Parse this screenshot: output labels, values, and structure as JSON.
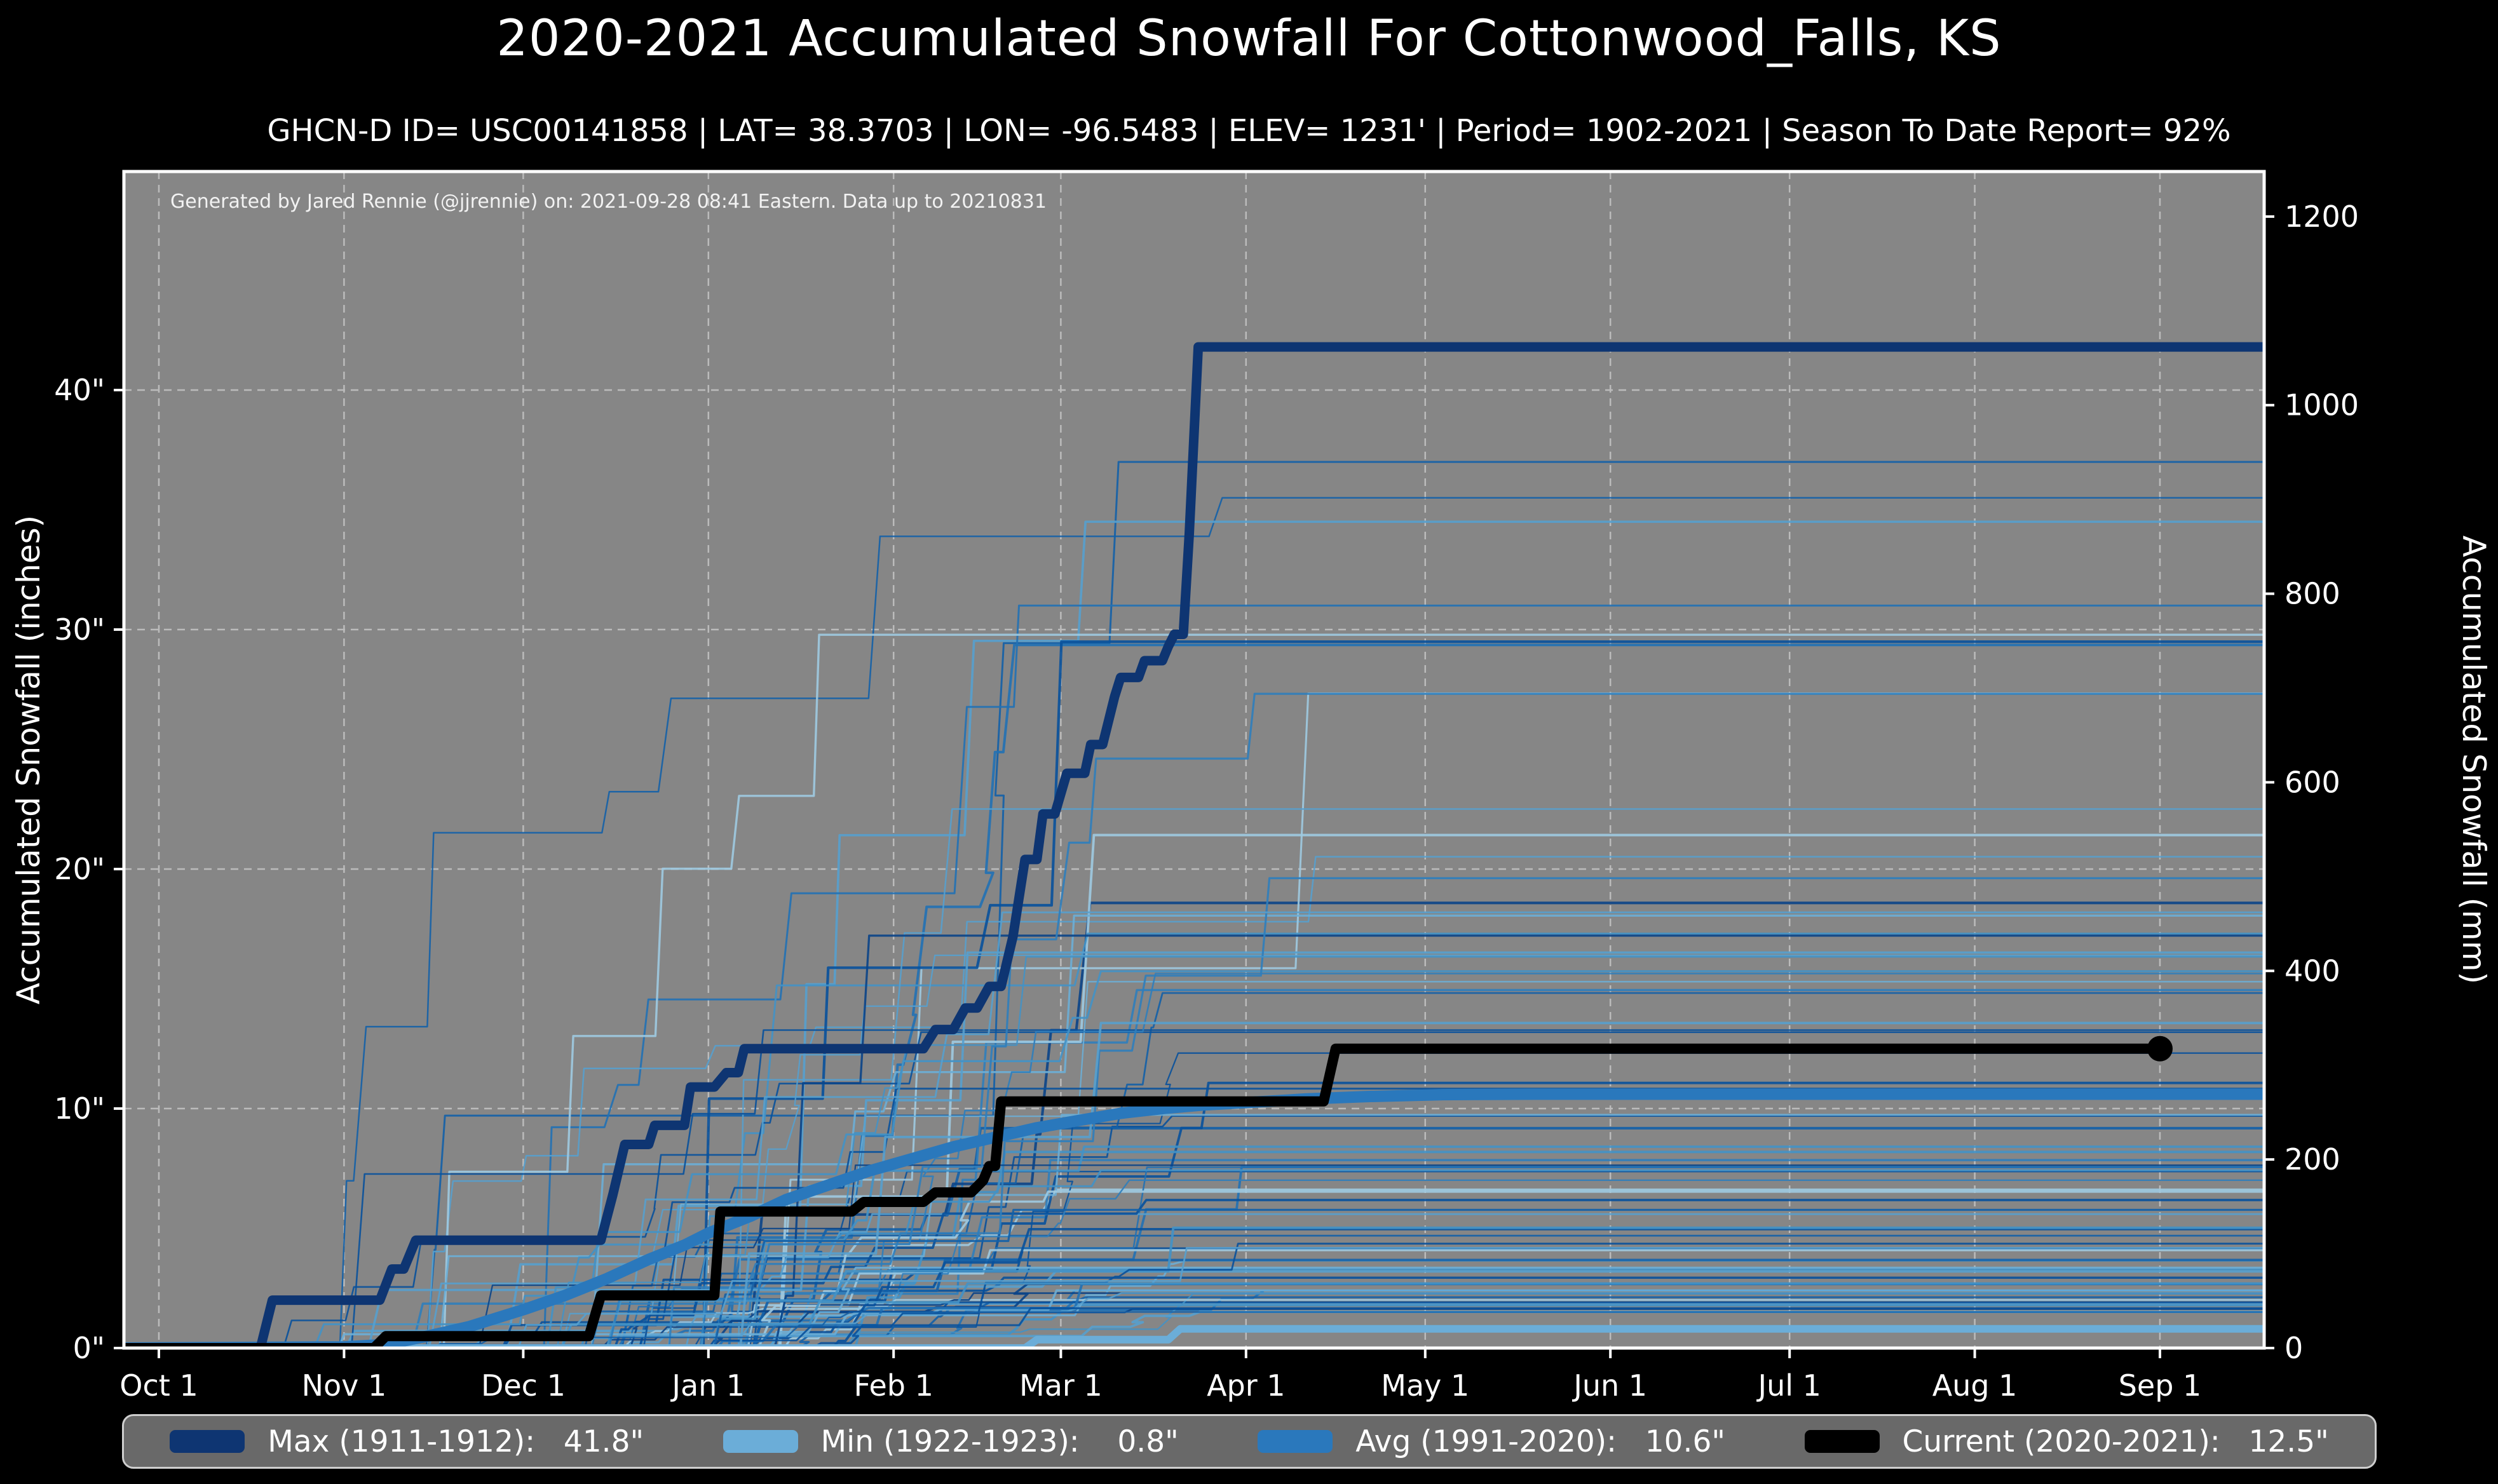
{
  "title": "2020-2021 Accumulated Snowfall For Cottonwood_Falls, KS",
  "subtitle": "GHCN-D ID= USC00141858 | LAT= 38.3703 | LON= -96.5483 | ELEV= 1231' | Period= 1902-2021 | Season To Date Report= 92%",
  "annotation": "Generated by Jared Rennie (@jjrennie) on: 2021-09-28 08:41 Eastern. Data up to 20210831",
  "colors": {
    "page_bg": "#000000",
    "plot_bg": "#868686",
    "grid": "#e8e8e8",
    "spine": "#ffffff",
    "max_line": "#0e3572",
    "min_line": "#6badd8",
    "avg_line": "#2a78bc",
    "current_line": "#000000",
    "legend_bg": "#696969",
    "legend_border": "#cfcfcf"
  },
  "axes": {
    "x": {
      "ticks": [
        {
          "label": "Oct 1",
          "day": 0
        },
        {
          "label": "Nov 1",
          "day": 31
        },
        {
          "label": "Dec 1",
          "day": 61
        },
        {
          "label": "Jan 1",
          "day": 92
        },
        {
          "label": "Feb 1",
          "day": 123
        },
        {
          "label": "Mar 1",
          "day": 151
        },
        {
          "label": "Apr 1",
          "day": 182
        },
        {
          "label": "May 1",
          "day": 212
        },
        {
          "label": "Jun 1",
          "day": 243
        },
        {
          "label": "Jul 1",
          "day": 273
        },
        {
          "label": "Aug 1",
          "day": 304
        },
        {
          "label": "Sep 1",
          "day": 335
        }
      ]
    },
    "y_left": {
      "title": "Accumulated Snowfall (inches)",
      "ticks": [
        {
          "label": "0\"",
          "inches": 0
        },
        {
          "label": "10\"",
          "inches": 10
        },
        {
          "label": "20\"",
          "inches": 20
        },
        {
          "label": "30\"",
          "inches": 30
        },
        {
          "label": "40\"",
          "inches": 40
        }
      ]
    },
    "y_right": {
      "title": "Accumulated Snowfall (mm)",
      "ticks": [
        {
          "label": "0",
          "mm": 0
        },
        {
          "label": "200",
          "mm": 200
        },
        {
          "label": "400",
          "mm": 400
        },
        {
          "label": "600",
          "mm": 600
        },
        {
          "label": "800",
          "mm": 800
        },
        {
          "label": "1000",
          "mm": 1000
        },
        {
          "label": "1200",
          "mm": 1200
        }
      ]
    }
  },
  "legend": {
    "entries": [
      {
        "label": "Max (1911-1912):   41.8\"",
        "color": "#0e3572"
      },
      {
        "label": "Min (1922-1923):    0.8\"",
        "color": "#6badd8"
      },
      {
        "label": "Avg (1991-2020):   10.6\"",
        "color": "#2a78bc"
      },
      {
        "label": "Current (2020-2021):   12.5\"",
        "color": "#000000"
      }
    ]
  },
  "chart_data": {
    "type": "line",
    "title": "2020-2021 Accumulated Snowfall For Cottonwood_Falls, KS",
    "x_unit": "days since Oct 1",
    "xlim_days": [
      -6,
      353
    ],
    "ylim_inches": [
      0,
      49.1
    ],
    "grid": true,
    "legend_position": "bottom",
    "series": [
      {
        "name": "Max (1911-1912)",
        "total_inches": 41.8,
        "color": "#0e3572",
        "width": 15,
        "points": [
          [
            -6,
            0
          ],
          [
            17,
            0
          ],
          [
            19,
            2.0
          ],
          [
            37,
            2.0
          ],
          [
            39,
            3.3
          ],
          [
            41,
            3.3
          ],
          [
            43,
            4.5
          ],
          [
            74,
            4.5
          ],
          [
            76,
            6.4
          ],
          [
            78,
            8.5
          ],
          [
            82,
            8.5
          ],
          [
            83,
            9.3
          ],
          [
            88,
            9.3
          ],
          [
            89,
            10.9
          ],
          [
            93,
            10.9
          ],
          [
            95,
            11.5
          ],
          [
            97,
            11.5
          ],
          [
            98,
            12.5
          ],
          [
            128,
            12.5
          ],
          [
            130,
            13.3
          ],
          [
            133,
            13.3
          ],
          [
            135,
            14.2
          ],
          [
            137,
            14.2
          ],
          [
            139,
            15.1
          ],
          [
            141,
            15.1
          ],
          [
            143,
            17.2
          ],
          [
            145,
            20.4
          ],
          [
            147,
            20.4
          ],
          [
            148,
            22.3
          ],
          [
            150,
            22.3
          ],
          [
            152,
            24.0
          ],
          [
            155,
            24.0
          ],
          [
            156,
            25.2
          ],
          [
            158,
            25.2
          ],
          [
            159,
            26.2
          ],
          [
            160,
            27.2
          ],
          [
            161,
            28.0
          ],
          [
            164,
            28.0
          ],
          [
            165,
            28.7
          ],
          [
            168,
            28.7
          ],
          [
            169,
            29.3
          ],
          [
            170,
            29.8
          ],
          [
            171.5,
            29.8
          ],
          [
            172.5,
            34.0
          ],
          [
            174,
            41.8
          ],
          [
            353,
            41.8
          ]
        ]
      },
      {
        "name": "Min (1922-1923)",
        "total_inches": 0.8,
        "color": "#6badd8",
        "width": 12,
        "points": [
          [
            -6,
            0
          ],
          [
            145,
            0
          ],
          [
            147,
            0.35
          ],
          [
            169,
            0.35
          ],
          [
            171,
            0.8
          ],
          [
            353,
            0.8
          ]
        ]
      },
      {
        "name": "Avg (1991-2020)",
        "total_inches": 10.6,
        "color": "#2a78bc",
        "width": 18,
        "points": [
          [
            -6,
            0
          ],
          [
            31,
            0.05
          ],
          [
            38,
            0.15
          ],
          [
            45,
            0.5
          ],
          [
            52,
            0.9
          ],
          [
            61,
            1.6
          ],
          [
            68,
            2.2
          ],
          [
            75,
            2.9
          ],
          [
            82,
            3.7
          ],
          [
            88,
            4.3
          ],
          [
            92,
            4.8
          ],
          [
            99,
            5.5
          ],
          [
            105,
            6.2
          ],
          [
            112,
            6.8
          ],
          [
            119,
            7.4
          ],
          [
            126,
            7.9
          ],
          [
            133,
            8.4
          ],
          [
            140,
            8.8
          ],
          [
            147,
            9.2
          ],
          [
            154,
            9.5
          ],
          [
            161,
            9.8
          ],
          [
            168,
            10.0
          ],
          [
            175,
            10.15
          ],
          [
            182,
            10.25
          ],
          [
            192,
            10.4
          ],
          [
            202,
            10.5
          ],
          [
            215,
            10.58
          ],
          [
            230,
            10.6
          ],
          [
            353,
            10.6
          ]
        ]
      },
      {
        "name": "Current (2020-2021)",
        "total_inches": 12.5,
        "color": "#000000",
        "width": 16,
        "end_dot": true,
        "end_dot_radius": 20,
        "points": [
          [
            -6,
            0
          ],
          [
            36,
            0
          ],
          [
            38,
            0.5
          ],
          [
            72,
            0.5
          ],
          [
            74,
            2.2
          ],
          [
            93,
            2.2
          ],
          [
            94,
            5.7
          ],
          [
            116,
            5.7
          ],
          [
            118,
            6.1
          ],
          [
            128,
            6.1
          ],
          [
            130,
            6.5
          ],
          [
            136,
            6.5
          ],
          [
            138,
            7.0
          ],
          [
            139,
            7.6
          ],
          [
            140,
            7.6
          ],
          [
            141,
            10.3
          ],
          [
            195,
            10.3
          ],
          [
            197,
            12.5
          ],
          [
            335,
            12.5
          ]
        ]
      }
    ],
    "background_years": {
      "note": "thin step lines: each individual season 1902-2021, approximated",
      "count": 80,
      "seed": 11,
      "forced_finals": [
        37,
        35.5,
        34.5,
        31
      ],
      "final_range": [
        1.5,
        30
      ],
      "start_day_range": [
        14,
        96
      ],
      "plateau_day_range": [
        135,
        195
      ],
      "palette": [
        "#9ecae1",
        "#6baed6",
        "#57a0ce",
        "#4292c6",
        "#2f7ebc",
        "#2171b5",
        "#1361a9",
        "#08519c",
        "#0a4488"
      ]
    }
  }
}
